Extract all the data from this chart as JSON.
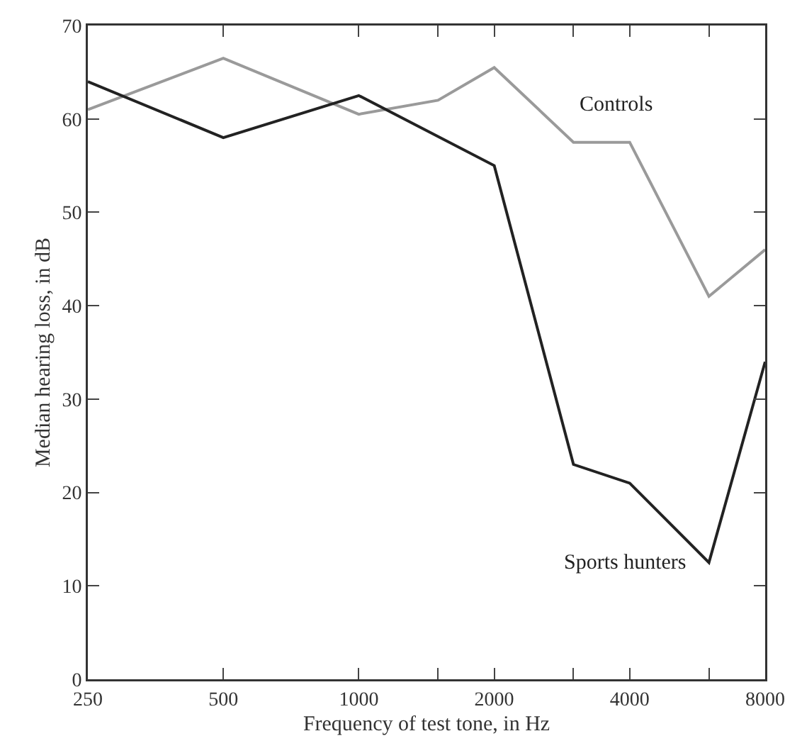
{
  "chart_data": {
    "type": "line",
    "xlabel": "Frequency of test tone, in Hz",
    "ylabel": "Median hearing loss, in dB",
    "log": "x",
    "x": [
      250,
      500,
      1000,
      1500,
      2000,
      3000,
      4000,
      6000,
      8000
    ],
    "series": [
      {
        "name": "Controls",
        "color": "#9a9a9a",
        "values": [
          61,
          66.5,
          60.5,
          62,
          65.5,
          57.5,
          57.5,
          41,
          46
        ]
      },
      {
        "name": "Sports hunters",
        "color": "#222222",
        "values": [
          64,
          58,
          62.5,
          null,
          55,
          23,
          21,
          12.5,
          34
        ]
      }
    ],
    "xlim": [
      250,
      8000
    ],
    "xticks": [
      250,
      500,
      1000,
      {
        "value": 1500,
        "label": null
      },
      2000,
      {
        "value": 3000,
        "label": null
      },
      4000,
      {
        "value": 6000,
        "label": null
      },
      8000
    ],
    "ylim": [
      0,
      70
    ],
    "yticks": [
      0,
      10,
      20,
      30,
      40,
      50,
      60,
      70
    ],
    "grid": false,
    "legend": false,
    "marker": "none",
    "line_style": "solid"
  }
}
